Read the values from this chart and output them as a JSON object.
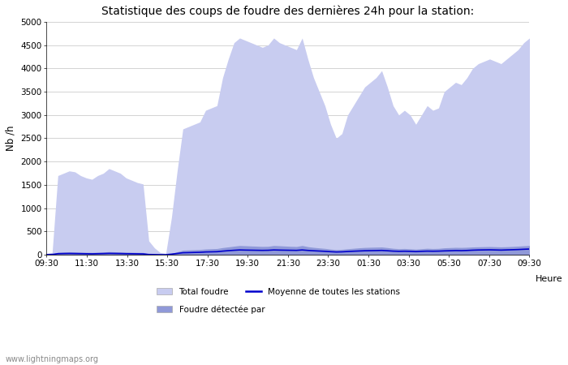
{
  "title": "Statistique des coups de foudre des dernières 24h pour la station:",
  "ylabel": "Nb /h",
  "xlabel": "Heure",
  "watermark": "www.lightningmaps.org",
  "x_labels": [
    "09:30",
    "11:30",
    "13:30",
    "15:30",
    "17:30",
    "19:30",
    "21:30",
    "23:30",
    "01:30",
    "03:30",
    "05:30",
    "07:30",
    "09:30"
  ],
  "ylim": [
    0,
    5000
  ],
  "yticks": [
    0,
    500,
    1000,
    1500,
    2000,
    2500,
    3000,
    3500,
    4000,
    4500,
    5000
  ],
  "total_foudre_color": "#c8ccf0",
  "foudre_detectee_color": "#9099d8",
  "moyenne_color": "#0000cc",
  "background_color": "#ffffff",
  "grid_color": "#cccccc",
  "title_fontsize": 10,
  "legend_labels": [
    "Total foudre",
    "Foudre détectée par",
    "Moyenne de toutes les stations"
  ],
  "total_foudre_values": [
    30,
    50,
    1700,
    1750,
    1800,
    1780,
    1700,
    1650,
    1620,
    1700,
    1750,
    1850,
    1800,
    1750,
    1650,
    1600,
    1550,
    1520,
    300,
    150,
    50,
    30,
    800,
    1800,
    2700,
    2750,
    2800,
    2850,
    3100,
    3150,
    3200,
    3800,
    4200,
    4550,
    4650,
    4600,
    4550,
    4500,
    4450,
    4500,
    4650,
    4550,
    4500,
    4450,
    4400,
    4650,
    4200,
    3800,
    3500,
    3200,
    2800,
    2500,
    2600,
    3000,
    3200,
    3400,
    3600,
    3700,
    3800,
    3950,
    3600,
    3200,
    3000,
    3100,
    3000,
    2800,
    3000,
    3200,
    3100,
    3150,
    3500,
    3600,
    3700,
    3650,
    3800,
    4000,
    4100,
    4150,
    4200,
    4150,
    4100,
    4200,
    4300,
    4400,
    4550,
    4650
  ],
  "foudre_detectee_values": [
    10,
    15,
    55,
    60,
    65,
    62,
    58,
    54,
    52,
    56,
    60,
    68,
    65,
    62,
    57,
    55,
    52,
    50,
    20,
    15,
    10,
    10,
    30,
    65,
    100,
    105,
    110,
    115,
    125,
    130,
    135,
    155,
    170,
    185,
    200,
    195,
    190,
    185,
    180,
    182,
    200,
    195,
    188,
    182,
    178,
    200,
    175,
    160,
    148,
    138,
    122,
    112,
    118,
    130,
    140,
    150,
    158,
    162,
    165,
    168,
    155,
    140,
    132,
    136,
    130,
    122,
    132,
    140,
    135,
    138,
    150,
    155,
    160,
    158,
    162,
    168,
    172,
    175,
    178,
    174,
    170,
    174,
    180,
    186,
    194,
    200
  ],
  "moyenne_values": [
    5,
    8,
    25,
    28,
    30,
    28,
    26,
    24,
    22,
    25,
    28,
    32,
    30,
    28,
    25,
    24,
    22,
    20,
    8,
    6,
    4,
    4,
    15,
    30,
    45,
    48,
    52,
    55,
    62,
    65,
    68,
    80,
    90,
    98,
    105,
    102,
    100,
    98,
    96,
    98,
    105,
    102,
    100,
    98,
    96,
    105,
    95,
    88,
    82,
    76,
    68,
    62,
    65,
    72,
    78,
    83,
    88,
    90,
    92,
    95,
    88,
    80,
    76,
    78,
    76,
    70,
    76,
    80,
    78,
    80,
    85,
    88,
    92,
    90,
    94,
    100,
    104,
    106,
    108,
    105,
    102,
    106,
    110,
    114,
    120,
    125
  ]
}
